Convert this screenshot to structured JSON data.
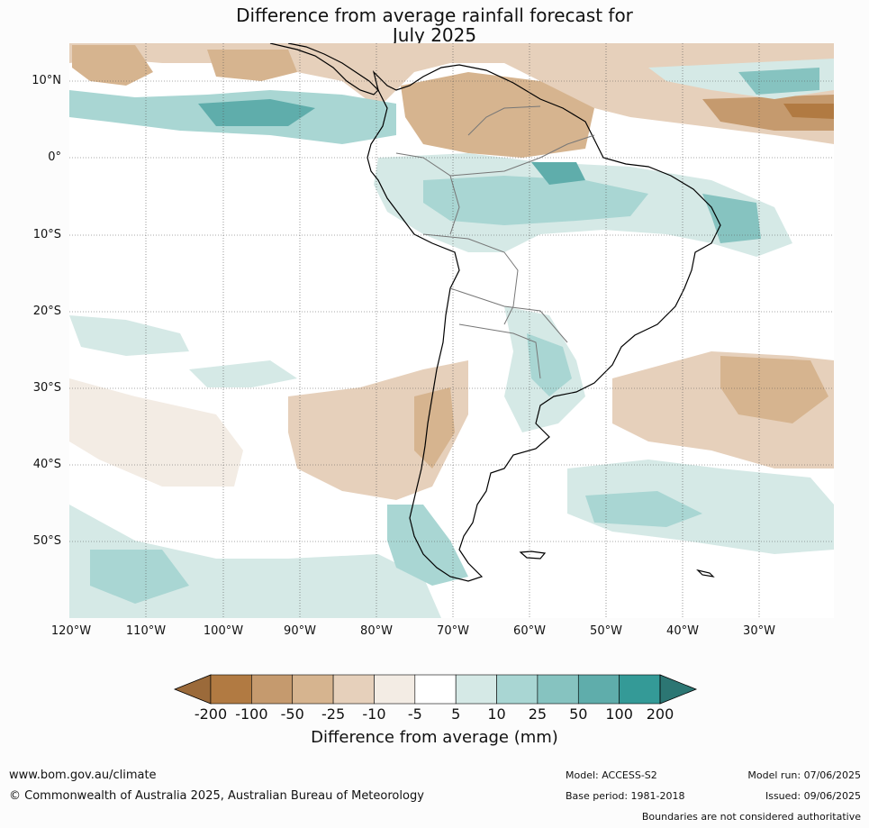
{
  "title": {
    "line1": "Difference from average rainfall forecast for",
    "line2": "July 2025"
  },
  "map": {
    "lat_labels": [
      "10°N",
      "0°",
      "10°S",
      "20°S",
      "30°S",
      "40°S",
      "50°S"
    ],
    "lon_labels": [
      "120°W",
      "110°W",
      "100°W",
      "90°W",
      "80°W",
      "70°W",
      "60°W",
      "50°W",
      "40°W",
      "30°W"
    ]
  },
  "colorbar": {
    "title": "Difference from average (mm)",
    "ticks": [
      "-200",
      "-100",
      "-50",
      "-25",
      "-10",
      "-5",
      "5",
      "10",
      "25",
      "50",
      "100",
      "200"
    ],
    "colors": [
      "#9b6a3a",
      "#b17a42",
      "#c59a6e",
      "#d6b48f",
      "#e6d0bb",
      "#f3ece4",
      "#ffffff",
      "#d5e9e6",
      "#a9d6d3",
      "#86c3c0",
      "#5fadab",
      "#349a97",
      "#2c7673"
    ]
  },
  "footer": {
    "url": "www.bom.gov.au/climate",
    "copyright": "© Commonwealth of Australia 2025, Australian Bureau of Meteorology",
    "model": "Model: ACCESS-S2",
    "base_period": "Base period: 1981-2018",
    "model_run": "Model run: 07/06/2025",
    "issued": "Issued: 09/06/2025",
    "boundaries": "Boundaries are not considered authoritative"
  }
}
